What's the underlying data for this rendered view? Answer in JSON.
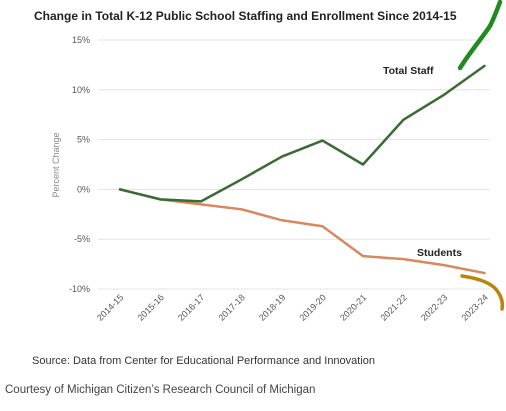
{
  "chart_data": {
    "type": "line",
    "title": "Change in Total K-12 Public School Staffing and Enrollment Since 2014-15",
    "ylabel": "Percent Change",
    "xlabel": "",
    "categories": [
      "2014-15",
      "2015-16",
      "2016-17",
      "2017-18",
      "2018-19",
      "2019-20",
      "2020-21",
      "2021-22",
      "2022-23",
      "2023-24"
    ],
    "ylim": [
      -10,
      15
    ],
    "yticks": [
      "15%",
      "10%",
      "5%",
      "0%",
      "-5%",
      "-10%"
    ],
    "ytick_values": [
      15,
      10,
      5,
      0,
      -5,
      -10
    ],
    "grid": "horizontal",
    "series": [
      {
        "name": "Total Staff",
        "color": "#3a6b35",
        "values": [
          0,
          -1.0,
          -1.2,
          1.0,
          3.3,
          4.9,
          2.5,
          7.0,
          9.5,
          12.4
        ]
      },
      {
        "name": "Students",
        "color": "#d9875e",
        "values": [
          0,
          -1.0,
          -1.5,
          -2.0,
          -3.1,
          -3.7,
          -6.7,
          -7.0,
          -7.6,
          -8.4
        ]
      }
    ]
  },
  "source": "Source: Data from Center for Educational Performance and Innovation",
  "courtesy": "Courtesy of Michigan Citizen’s Research Council of Michigan",
  "annotation_colors": {
    "green_stroke": "#1f8a1f",
    "gold_stroke": "#b8860b"
  }
}
